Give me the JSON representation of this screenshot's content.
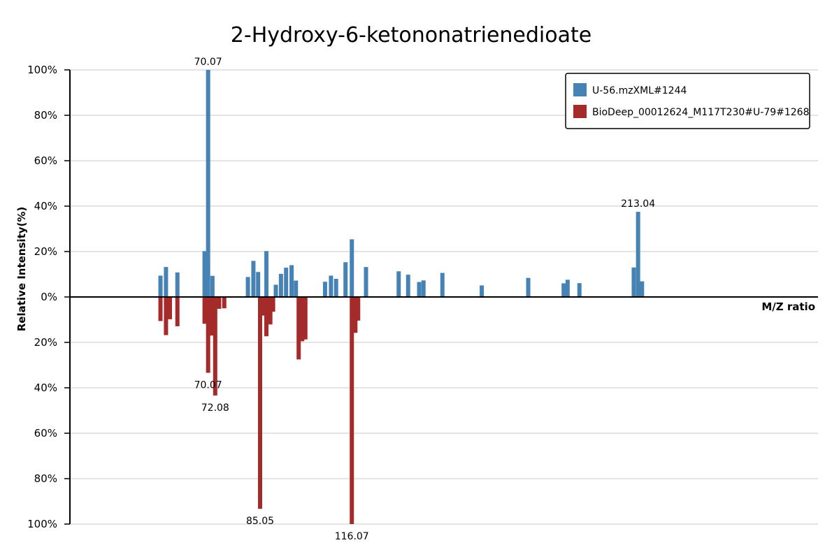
{
  "chart_data": {
    "type": "bar",
    "title": "2-Hydroxy-6-ketononatrienedioate",
    "xlabel": "M/Z ratio",
    "ylabel": "Relative Intensity(%)",
    "xlim": [
      40,
      230
    ],
    "ylim": [
      -100,
      100
    ],
    "y_ticks": [
      {
        "value": 100,
        "label": "100%"
      },
      {
        "value": 80,
        "label": "80%"
      },
      {
        "value": 60,
        "label": "60%"
      },
      {
        "value": 40,
        "label": "40%"
      },
      {
        "value": 20,
        "label": "20%"
      },
      {
        "value": 0,
        "label": "0%"
      },
      {
        "value": -20,
        "label": "20%"
      },
      {
        "value": -40,
        "label": "40%"
      },
      {
        "value": -60,
        "label": "60%"
      },
      {
        "value": -80,
        "label": "80%"
      },
      {
        "value": -100,
        "label": "100%"
      }
    ],
    "grid": true,
    "legend_position": "top-right",
    "series": [
      {
        "name": "U-56.mzXML#1244",
        "color": "#4682B4",
        "direction": "up",
        "points": [
          {
            "mz": 63.0,
            "value": 9.4
          },
          {
            "mz": 64.4,
            "value": 13.2
          },
          {
            "mz": 67.3,
            "value": 10.8
          },
          {
            "mz": 74.2,
            "value": 20.2
          },
          {
            "mz": 75.1,
            "value": 100.0,
            "label": "70.07"
          },
          {
            "mz": 76.2,
            "value": 9.3
          },
          {
            "mz": 85.2,
            "value": 8.8
          },
          {
            "mz": 86.6,
            "value": 15.9
          },
          {
            "mz": 87.8,
            "value": 11.0
          },
          {
            "mz": 89.9,
            "value": 20.2
          },
          {
            "mz": 92.3,
            "value": 5.4
          },
          {
            "mz": 93.6,
            "value": 10.2
          },
          {
            "mz": 94.9,
            "value": 12.9
          },
          {
            "mz": 96.3,
            "value": 14.0
          },
          {
            "mz": 97.4,
            "value": 7.2
          },
          {
            "mz": 104.8,
            "value": 6.7
          },
          {
            "mz": 106.3,
            "value": 9.4
          },
          {
            "mz": 107.6,
            "value": 8.0
          },
          {
            "mz": 110.0,
            "value": 15.3
          },
          {
            "mz": 111.6,
            "value": 25.4
          },
          {
            "mz": 115.2,
            "value": 13.2
          },
          {
            "mz": 123.5,
            "value": 11.3
          },
          {
            "mz": 125.9,
            "value": 9.8
          },
          {
            "mz": 128.7,
            "value": 6.6
          },
          {
            "mz": 129.8,
            "value": 7.3
          },
          {
            "mz": 134.6,
            "value": 10.6
          },
          {
            "mz": 144.6,
            "value": 5.1
          },
          {
            "mz": 156.4,
            "value": 8.4
          },
          {
            "mz": 165.4,
            "value": 6.0
          },
          {
            "mz": 166.4,
            "value": 7.6
          },
          {
            "mz": 169.4,
            "value": 6.1
          },
          {
            "mz": 183.2,
            "value": 13.0
          },
          {
            "mz": 184.3,
            "value": 37.5,
            "label": "213.04"
          },
          {
            "mz": 185.3,
            "value": 6.9
          }
        ]
      },
      {
        "name": "BioDeep_00012624_M117T230#U-79#1268",
        "color": "#A52A2A",
        "direction": "down",
        "points": [
          {
            "mz": 63.0,
            "value": 10.6
          },
          {
            "mz": 64.4,
            "value": 16.8
          },
          {
            "mz": 65.4,
            "value": 9.8
          },
          {
            "mz": 67.3,
            "value": 12.9
          },
          {
            "mz": 74.2,
            "value": 11.8
          },
          {
            "mz": 75.1,
            "value": 33.4,
            "label": "70.07"
          },
          {
            "mz": 76.0,
            "value": 17.0
          },
          {
            "mz": 76.9,
            "value": 43.4,
            "label": "72.08"
          },
          {
            "mz": 77.9,
            "value": 5.2
          },
          {
            "mz": 79.2,
            "value": 5.0
          },
          {
            "mz": 88.3,
            "value": 93.3,
            "label": "85.05"
          },
          {
            "mz": 89.3,
            "value": 8.2
          },
          {
            "mz": 89.9,
            "value": 17.3
          },
          {
            "mz": 90.9,
            "value": 12.1
          },
          {
            "mz": 91.6,
            "value": 6.5
          },
          {
            "mz": 98.1,
            "value": 27.5
          },
          {
            "mz": 99.0,
            "value": 19.5
          },
          {
            "mz": 99.8,
            "value": 18.7
          },
          {
            "mz": 111.6,
            "value": 100.0,
            "label": "116.07"
          },
          {
            "mz": 112.5,
            "value": 15.8
          },
          {
            "mz": 113.2,
            "value": 10.4
          }
        ]
      }
    ]
  }
}
